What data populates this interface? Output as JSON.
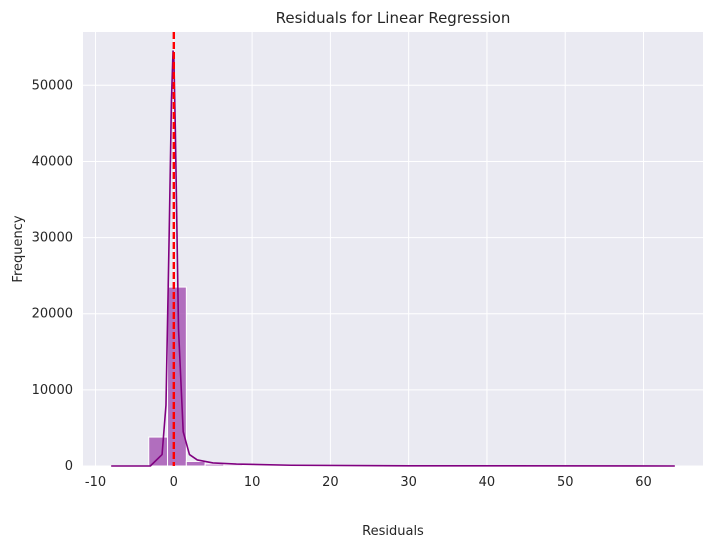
{
  "chart_data": {
    "type": "histogram",
    "title": "Residuals for Linear Regression",
    "xlabel": "Residuals",
    "ylabel": "Frequency",
    "xlim": [
      -11.6,
      67.6
    ],
    "ylim": [
      0,
      57000
    ],
    "x_ticks": [
      -10,
      0,
      10,
      20,
      30,
      40,
      50,
      60
    ],
    "y_ticks": [
      0,
      10000,
      20000,
      30000,
      40000,
      50000
    ],
    "grid": true,
    "background": "#eaeaf2",
    "bin_width": 2.4,
    "bins": [
      {
        "x0": -3.2,
        "x1": -0.8,
        "count": 3800
      },
      {
        "x0": -0.8,
        "x1": 1.6,
        "count": 23500
      },
      {
        "x0": 1.6,
        "x1": 4.0,
        "count": 600
      },
      {
        "x0": 4.0,
        "x1": 6.4,
        "count": 250
      },
      {
        "x0": 6.4,
        "x1": 8.8,
        "count": 150
      },
      {
        "x0": 8.8,
        "x1": 11.2,
        "count": 100
      },
      {
        "x0": 11.2,
        "x1": 13.6,
        "count": 70
      },
      {
        "x0": 13.6,
        "x1": 16.0,
        "count": 50
      },
      {
        "x0": 16.0,
        "x1": 18.4,
        "count": 40
      },
      {
        "x0": 18.4,
        "x1": 20.8,
        "count": 30
      }
    ],
    "kde": {
      "x": [
        -8,
        -3,
        -1.5,
        -1.0,
        -0.6,
        -0.3,
        -0.1,
        0.0,
        0.2,
        0.6,
        1.2,
        2.0,
        3.0,
        5.0,
        8.0,
        15.0,
        30.0,
        64.0
      ],
      "y": [
        0,
        0,
        1500,
        8000,
        30000,
        48000,
        54500,
        54000,
        44000,
        18000,
        4500,
        1500,
        800,
        400,
        250,
        100,
        30,
        0
      ]
    },
    "vline": {
      "x": 0,
      "style": "dashed"
    },
    "colors": {
      "bars": "#a758b5",
      "bar_edge": "#ffffff",
      "kde": "#800080",
      "vline": "#ff0000"
    }
  }
}
